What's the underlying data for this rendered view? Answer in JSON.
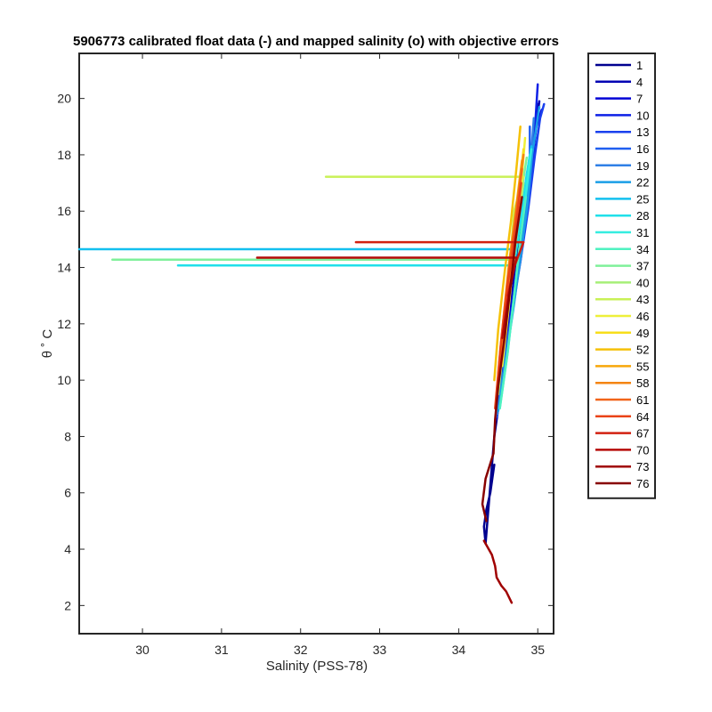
{
  "chart_data": {
    "type": "line",
    "title": "5906773 calibrated float data (-) and mapped salinity (o) with objective errors",
    "xlabel": "Salinity (PSS-78)",
    "ylabel": "θ ˚ C",
    "xlim": [
      29.2,
      35.2
    ],
    "ylim": [
      1.0,
      21.6
    ],
    "xticks": [
      30,
      31,
      32,
      33,
      34,
      35
    ],
    "yticks": [
      2,
      4,
      6,
      8,
      10,
      12,
      14,
      16,
      18,
      20
    ],
    "grid": false,
    "legend_position": "outside-right",
    "legend": [
      "1",
      "4",
      "7",
      "10",
      "13",
      "16",
      "19",
      "22",
      "25",
      "28",
      "31",
      "34",
      "37",
      "40",
      "43",
      "46",
      "49",
      "52",
      "55",
      "58",
      "61",
      "64",
      "67",
      "70",
      "73",
      "76"
    ],
    "legend_colors": [
      "#00008f",
      "#0000b3",
      "#0000d6",
      "#0d20e6",
      "#1a40ee",
      "#1f5ff0",
      "#2f7fe6",
      "#1a9ee6",
      "#13c0ef",
      "#20e0ea",
      "#35ede0",
      "#4ff2c0",
      "#7ff09a",
      "#a6ef78",
      "#c9f157",
      "#eef03a",
      "#f7de1b",
      "#f5c108",
      "#f7a70a",
      "#f48513",
      "#f1641a",
      "#ea4317",
      "#d22010",
      "#b60a08",
      "#a00000",
      "#880000"
    ],
    "series": [
      {
        "name": "1",
        "x": [
          34.45,
          34.4,
          34.35,
          34.32,
          34.34,
          34.45,
          34.55,
          34.62,
          34.7,
          34.8,
          34.88,
          34.95,
          35.0
        ],
        "y": [
          7.0,
          6.0,
          5.4,
          4.8,
          4.2,
          8.0,
          10.0,
          12.0,
          13.8,
          15.5,
          17.0,
          18.5,
          19.8
        ]
      },
      {
        "name": "4",
        "x": [
          34.46,
          34.55,
          34.63,
          34.72,
          34.82,
          34.9,
          34.97,
          35.02
        ],
        "y": [
          8.5,
          10.2,
          12.0,
          13.9,
          15.6,
          17.2,
          18.8,
          19.9
        ]
      },
      {
        "name": "7",
        "x": [
          34.47,
          34.56,
          34.64,
          34.74,
          34.84,
          34.92,
          34.98,
          35.05
        ],
        "y": [
          8.6,
          10.3,
          12.2,
          14.0,
          15.8,
          17.4,
          19.0,
          19.6
        ]
      },
      {
        "name": "10",
        "x": [
          34.47,
          34.57,
          34.66,
          34.76,
          34.86,
          34.93,
          34.97,
          35.0
        ],
        "y": [
          8.6,
          10.4,
          12.3,
          14.1,
          16.0,
          17.6,
          19.2,
          20.5
        ]
      },
      {
        "name": "13",
        "x": [
          34.48,
          34.58,
          34.67,
          34.78,
          34.88,
          34.96,
          35.03,
          35.08
        ],
        "y": [
          8.7,
          10.5,
          12.4,
          14.2,
          16.1,
          17.9,
          19.3,
          19.8
        ]
      },
      {
        "name": "16",
        "x": [
          34.48,
          34.58,
          34.68,
          34.78,
          34.85,
          34.9,
          34.9
        ],
        "y": [
          8.7,
          10.6,
          12.5,
          14.3,
          16.2,
          18.0,
          19.0
        ]
      },
      {
        "name": "19",
        "x": [
          34.49,
          34.59,
          34.69,
          34.79,
          34.86,
          34.92,
          34.95
        ],
        "y": [
          8.8,
          10.7,
          12.6,
          14.4,
          16.3,
          18.1,
          19.3
        ]
      },
      {
        "name": "22",
        "x": [
          34.5,
          34.6,
          34.7,
          34.78,
          34.87,
          34.93,
          35.02
        ],
        "y": [
          8.9,
          10.8,
          12.7,
          14.4,
          16.2,
          18.0,
          19.7
        ]
      },
      {
        "name": "25",
        "x": [
          29.2,
          34.72,
          34.78,
          34.86,
          34.92
        ],
        "y": [
          14.65,
          14.65,
          15.6,
          17.3,
          18.3
        ]
      },
      {
        "name": "28",
        "x": [
          30.45,
          34.7,
          34.76,
          34.85,
          34.9
        ],
        "y": [
          14.07,
          14.07,
          15.2,
          17.0,
          18.0
        ]
      },
      {
        "name": "31",
        "x": [
          34.52,
          34.62,
          34.7,
          34.78,
          34.86,
          34.92
        ],
        "y": [
          9.0,
          11.0,
          13.0,
          15.0,
          16.8,
          18.2
        ]
      },
      {
        "name": "34",
        "x": [
          34.52,
          34.62,
          34.7,
          34.78,
          34.85
        ],
        "y": [
          9.0,
          11.0,
          13.0,
          15.0,
          16.5
        ]
      },
      {
        "name": "37",
        "x": [
          29.62,
          34.67,
          34.73,
          34.8,
          34.86
        ],
        "y": [
          14.28,
          14.28,
          15.4,
          16.8,
          17.9
        ]
      },
      {
        "name": "40",
        "x": [
          34.5,
          34.58,
          34.66,
          34.74,
          34.82
        ],
        "y": [
          9.5,
          11.5,
          13.4,
          15.3,
          17.0
        ]
      },
      {
        "name": "43",
        "x": [
          32.32,
          34.82,
          34.7,
          34.66
        ],
        "y": [
          17.22,
          17.22,
          16.0,
          14.5
        ]
      },
      {
        "name": "46",
        "x": [
          34.55,
          34.63,
          34.7,
          34.78,
          34.84
        ],
        "y": [
          10.5,
          12.5,
          14.5,
          16.6,
          18.6
        ]
      },
      {
        "name": "49",
        "x": [
          34.55,
          34.62,
          34.7,
          34.76,
          34.82
        ],
        "y": [
          10.8,
          12.8,
          14.8,
          16.6,
          18.2
        ]
      },
      {
        "name": "52",
        "x": [
          34.45,
          34.5,
          34.58,
          34.66,
          34.73,
          34.78
        ],
        "y": [
          10.0,
          11.8,
          13.8,
          15.6,
          17.5,
          19.0
        ]
      },
      {
        "name": "55",
        "x": [
          34.5,
          34.56,
          34.63,
          34.72,
          34.8
        ],
        "y": [
          10.0,
          12.0,
          14.0,
          16.0,
          17.8
        ]
      },
      {
        "name": "58",
        "x": [
          34.52,
          34.58,
          34.66,
          34.74,
          34.82
        ],
        "y": [
          10.2,
          12.2,
          14.2,
          16.2,
          18.0
        ]
      },
      {
        "name": "61",
        "x": [
          34.48,
          34.54,
          34.62,
          34.72,
          34.8
        ],
        "y": [
          9.5,
          11.5,
          13.6,
          15.8,
          17.5
        ]
      },
      {
        "name": "64",
        "x": [
          34.46,
          34.53,
          34.62,
          34.72,
          34.79
        ],
        "y": [
          9.0,
          11.2,
          13.4,
          15.4,
          17.0
        ]
      },
      {
        "name": "67",
        "x": [
          32.7,
          34.82,
          34.7,
          34.62
        ],
        "y": [
          14.9,
          14.9,
          14.0,
          13.0
        ]
      },
      {
        "name": "70",
        "x": [
          31.45,
          34.73,
          34.63,
          34.55
        ],
        "y": [
          14.35,
          14.35,
          13.0,
          11.5
        ]
      },
      {
        "name": "73",
        "x": [
          34.32,
          34.42,
          34.46,
          34.48,
          34.54,
          34.6,
          34.67
        ],
        "y": [
          4.3,
          3.8,
          3.4,
          3.0,
          2.7,
          2.5,
          2.1
        ]
      },
      {
        "name": "76",
        "x": [
          34.35,
          34.3,
          34.34,
          34.44,
          34.46,
          34.5,
          34.58,
          34.65,
          34.72,
          34.8
        ],
        "y": [
          5.0,
          5.6,
          6.5,
          7.4,
          8.6,
          9.8,
          11.5,
          13.2,
          15.0,
          16.5
        ]
      }
    ]
  }
}
